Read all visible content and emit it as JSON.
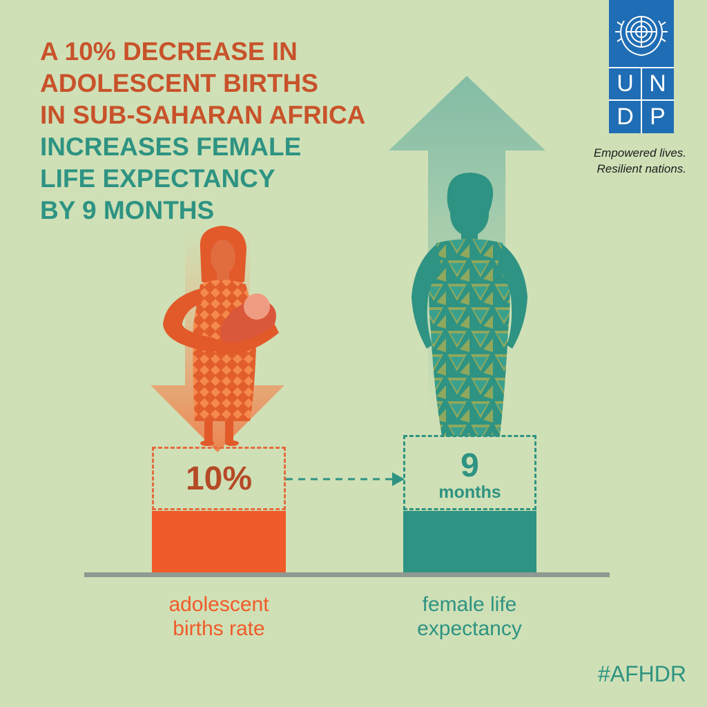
{
  "headline": {
    "line1": "A 10% DECREASE IN",
    "line2": "ADOLESCENT BIRTHS",
    "line3": "IN SUB-SAHARAN AFRICA",
    "line4": "INCREASES FEMALE",
    "line5": "LIFE EXPECTANCY",
    "line6": "BY 9 MONTHS"
  },
  "logo": {
    "letters": [
      "U",
      "N",
      "D",
      "P"
    ],
    "tagline_1": "Empowered lives.",
    "tagline_2": "Resilient nations."
  },
  "stats": {
    "births_decrease": "10%",
    "life_gain_number": "9",
    "life_gain_unit": "months"
  },
  "labels": {
    "left_line1": "adolescent",
    "left_line2": "births rate",
    "right_line1": "female life",
    "right_line2": "expectancy"
  },
  "hashtag": "#AFHDR",
  "colors": {
    "background": "#cfe0b6",
    "orange": "#f15a29",
    "dark_orange": "#c8522a",
    "teal": "#2e9382",
    "undp_blue": "#1f6db4"
  }
}
